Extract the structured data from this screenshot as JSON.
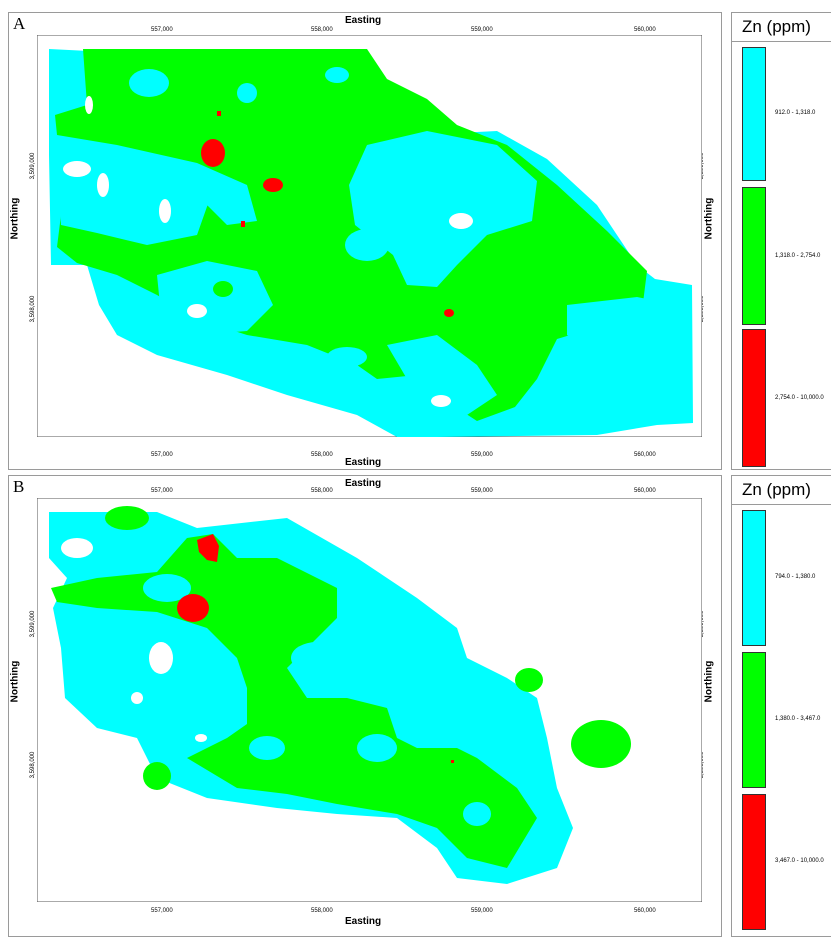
{
  "panels": [
    {
      "letter": "A",
      "x_axis_title": "Easting",
      "y_axis_title": "Northing",
      "x_ticks": [
        "557,000",
        "558,000",
        "559,000",
        "560,000"
      ],
      "y_ticks": [
        "3,599,000",
        "3,598,000"
      ],
      "legend": {
        "title": "Zn (ppm)",
        "classes": [
          {
            "range": "912.0 - 1,318.0",
            "color": "#00ffff"
          },
          {
            "range": "1,318.0 - 2,754.0",
            "color": "#00ff00"
          },
          {
            "range": "2,754.0 - 10,000.0",
            "color": "#ff0000"
          }
        ]
      }
    },
    {
      "letter": "B",
      "x_axis_title": "Easting",
      "y_axis_title": "Northing",
      "x_ticks": [
        "557,000",
        "558,000",
        "559,000",
        "560,000"
      ],
      "y_ticks": [
        "3,599,000",
        "3,598,000"
      ],
      "legend": {
        "title": "Zn (ppm)",
        "classes": [
          {
            "range": "794.0 - 1,380.0",
            "color": "#00ffff"
          },
          {
            "range": "1,380.0 - 3,467.0",
            "color": "#00ff00"
          },
          {
            "range": "3,467.0 - 10,000.0",
            "color": "#ff0000"
          }
        ]
      }
    }
  ]
}
